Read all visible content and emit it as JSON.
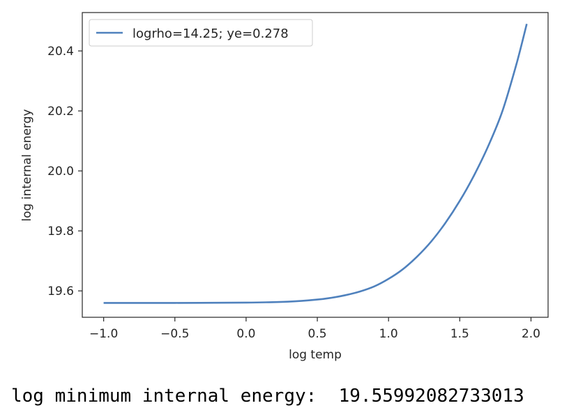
{
  "chart_data": {
    "type": "line",
    "title": "",
    "xlabel": "log temp",
    "ylabel": "log internal energy",
    "xlim": [
      -1.15,
      2.12
    ],
    "ylim": [
      19.512,
      20.528
    ],
    "xticks": [
      -1.0,
      -0.5,
      0.0,
      0.5,
      1.0,
      1.5,
      2.0
    ],
    "xtick_labels": [
      "−1.0",
      "−0.5",
      "0.0",
      "0.5",
      "1.0",
      "1.5",
      "2.0"
    ],
    "yticks": [
      19.6,
      19.8,
      20.0,
      20.2,
      20.4
    ],
    "ytick_labels": [
      "19.6",
      "19.8",
      "20.0",
      "20.2",
      "20.4"
    ],
    "grid": false,
    "legend_position": "upper-left",
    "series": [
      {
        "name": "logrho=14.25; ye=0.278",
        "color": "#4f81bd",
        "x": [
          -1.0,
          -0.5,
          0.0,
          0.3,
          0.5,
          0.6,
          0.7,
          0.8,
          0.9,
          1.0,
          1.1,
          1.2,
          1.3,
          1.4,
          1.5,
          1.6,
          1.7,
          1.8,
          1.9,
          1.97
        ],
        "y": [
          19.56,
          19.56,
          19.561,
          19.564,
          19.571,
          19.577,
          19.586,
          19.598,
          19.615,
          19.64,
          19.672,
          19.714,
          19.765,
          19.827,
          19.9,
          19.985,
          20.083,
          20.2,
          20.36,
          20.49
        ]
      }
    ]
  },
  "output": {
    "label": "log minimum internal energy:",
    "value": "19.55992082733013"
  }
}
